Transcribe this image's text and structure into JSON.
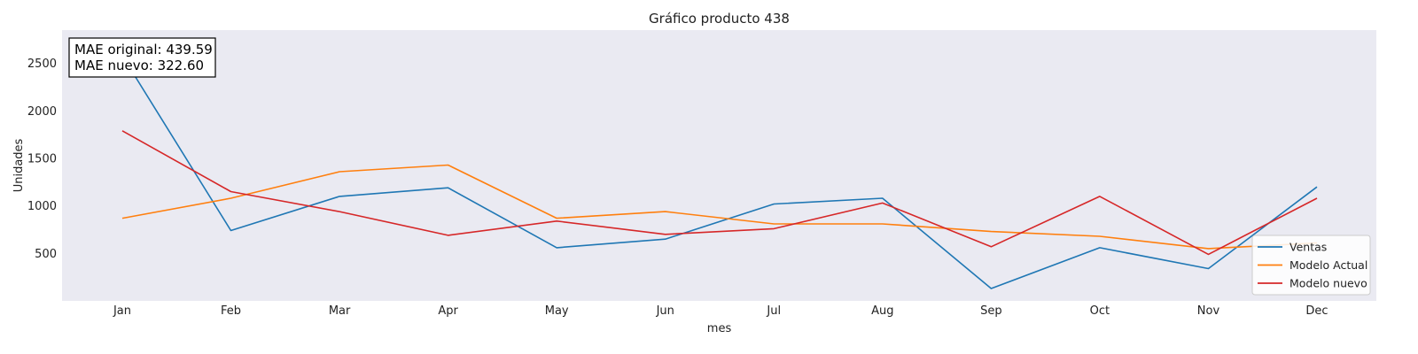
{
  "chart_data": {
    "type": "line",
    "title": "Gráfico producto 438",
    "xlabel": "mes",
    "ylabel": "Unidades",
    "categories": [
      "Jan",
      "Feb",
      "Mar",
      "Apr",
      "May",
      "Jun",
      "Jul",
      "Aug",
      "Sep",
      "Oct",
      "Nov",
      "Dec"
    ],
    "yticks": [
      500,
      1000,
      1500,
      2000,
      2500
    ],
    "ylim": [
      0,
      2850
    ],
    "grid": false,
    "legend_position": "lower right",
    "annotation": [
      "MAE original: 439.59",
      "MAE nuevo: 322.60"
    ],
    "series": [
      {
        "name": "Ventas",
        "color": "#1f77b4",
        "values": [
          2580,
          740,
          1100,
          1190,
          560,
          650,
          1020,
          1080,
          130,
          560,
          340,
          1200
        ]
      },
      {
        "name": "Modelo Actual",
        "color": "#ff7f0e",
        "values": [
          870,
          1080,
          1360,
          1430,
          870,
          940,
          810,
          810,
          730,
          680,
          550,
          610
        ]
      },
      {
        "name": "Modelo nuevo",
        "color": "#d62728",
        "values": [
          1790,
          1150,
          940,
          690,
          840,
          700,
          760,
          1030,
          570,
          1100,
          490,
          1080
        ]
      }
    ]
  }
}
